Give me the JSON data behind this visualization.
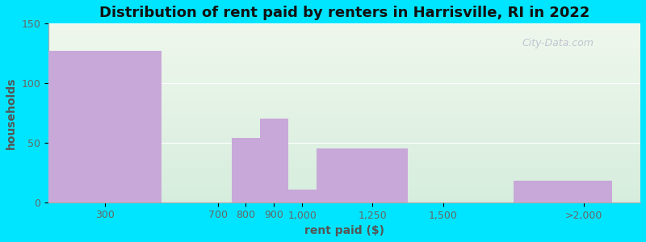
{
  "title": "Distribution of rent paid by renters in Harrisville, RI in 2022",
  "xlabel": "rent paid ($)",
  "ylabel": "households",
  "tick_positions": [
    300,
    700,
    800,
    900,
    1000,
    1250,
    1500,
    2000
  ],
  "tick_labels": [
    "300",
    "700",
    "800",
    "900",
    "1,000",
    "1,250",
    "1,500",
    ">2,000"
  ],
  "bar_left_edges": [
    100,
    500,
    750,
    850,
    950,
    1050,
    1375,
    1750
  ],
  "bar_widths": [
    400,
    200,
    100,
    100,
    100,
    325,
    125,
    350
  ],
  "bar_values": [
    127,
    0,
    54,
    70,
    11,
    45,
    0,
    18
  ],
  "bar_color": "#c8a8d8",
  "outer_bg": "#00e5ff",
  "ylim": [
    0,
    150
  ],
  "xlim": [
    100,
    2200
  ],
  "yticks": [
    0,
    50,
    100,
    150
  ],
  "title_fontsize": 13,
  "axis_label_fontsize": 10,
  "tick_fontsize": 9,
  "watermark": "City-Data.com",
  "grid_color": "#e0e8e0",
  "bg_top": "#e8f2e4",
  "bg_bottom": "#d4ecdc"
}
